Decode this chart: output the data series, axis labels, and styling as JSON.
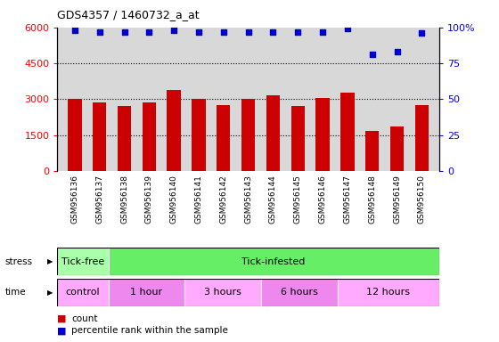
{
  "title": "GDS4357 / 1460732_a_at",
  "samples": [
    "GSM956136",
    "GSM956137",
    "GSM956138",
    "GSM956139",
    "GSM956140",
    "GSM956141",
    "GSM956142",
    "GSM956143",
    "GSM956144",
    "GSM956145",
    "GSM956146",
    "GSM956147",
    "GSM956148",
    "GSM956149",
    "GSM956150"
  ],
  "counts": [
    3020,
    2850,
    2720,
    2870,
    3380,
    3030,
    2760,
    3000,
    3180,
    2730,
    3050,
    3280,
    1680,
    1870,
    2760
  ],
  "percentile": [
    98,
    97,
    97,
    97,
    98,
    97,
    97,
    97,
    97,
    97,
    97,
    99,
    81,
    83,
    96
  ],
  "bar_color": "#cc0000",
  "dot_color": "#0000cc",
  "ylim_left": [
    0,
    6000
  ],
  "ylim_right": [
    0,
    100
  ],
  "yticks_left": [
    0,
    1500,
    3000,
    4500,
    6000
  ],
  "yticks_right": [
    0,
    25,
    50,
    75,
    100
  ],
  "grid_values": [
    1500,
    3000,
    4500
  ],
  "stress_groups": [
    {
      "label": "Tick-free",
      "start": 0,
      "end": 2,
      "color": "#aaffaa"
    },
    {
      "label": "Tick-infested",
      "start": 2,
      "end": 15,
      "color": "#66ee66"
    }
  ],
  "time_groups": [
    {
      "label": "control",
      "start": 0,
      "end": 2,
      "color": "#ffaaff"
    },
    {
      "label": "1 hour",
      "start": 2,
      "end": 5,
      "color": "#ee88ee"
    },
    {
      "label": "3 hours",
      "start": 5,
      "end": 8,
      "color": "#ffaaff"
    },
    {
      "label": "6 hours",
      "start": 8,
      "end": 11,
      "color": "#ee88ee"
    },
    {
      "label": "12 hours",
      "start": 11,
      "end": 15,
      "color": "#ffaaff"
    }
  ],
  "legend_count_color": "#cc0000",
  "legend_dot_color": "#0000cc",
  "plot_bg_color": "#d8d8d8",
  "xlabel_bg_color": "#cccccc"
}
